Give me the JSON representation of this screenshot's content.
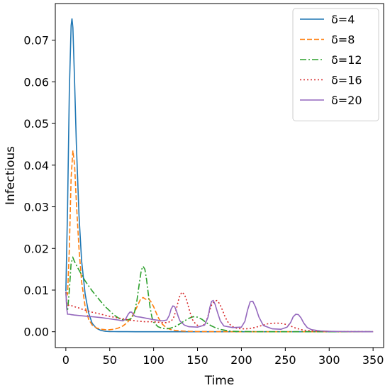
{
  "chart_data": {
    "type": "line",
    "xlabel": "Time",
    "ylabel": "Infectious",
    "xlim": [
      -12,
      362
    ],
    "ylim": [
      -0.0038,
      0.0788
    ],
    "xticks": [
      0,
      50,
      100,
      150,
      200,
      250,
      300,
      350
    ],
    "yticks": [
      0.0,
      0.01,
      0.02,
      0.03,
      0.04,
      0.05,
      0.06,
      0.07
    ],
    "ytick_labels": [
      "0.00",
      "0.01",
      "0.02",
      "0.03",
      "0.04",
      "0.05",
      "0.06",
      "0.07"
    ],
    "legend_position": "top-right",
    "grid": false,
    "series": [
      {
        "name": "δ=4",
        "color": "#1f77b4",
        "dash": "solid",
        "x": [
          0,
          2,
          4,
          6,
          7,
          8,
          10,
          12,
          15,
          18,
          22,
          26,
          30,
          35,
          40,
          45,
          50,
          55,
          60,
          70,
          80,
          100,
          150,
          200,
          250,
          300,
          350
        ],
        "y": [
          0.0098,
          0.03,
          0.058,
          0.0735,
          0.0752,
          0.073,
          0.06,
          0.045,
          0.028,
          0.017,
          0.009,
          0.0045,
          0.002,
          0.0008,
          0.0003,
          0.0001,
          5e-05,
          3e-05,
          2e-05,
          1e-05,
          0.0,
          0.0,
          0.0,
          0.0,
          0.0,
          0.0,
          0.0
        ]
      },
      {
        "name": "δ=8",
        "color": "#ff7f0e",
        "dash": "dashed",
        "x": [
          0,
          2,
          4,
          6,
          8,
          10,
          12,
          15,
          18,
          22,
          26,
          30,
          35,
          40,
          45,
          50,
          55,
          60,
          65,
          70,
          75,
          80,
          85,
          88,
          91,
          94,
          97,
          100,
          105,
          110,
          115,
          120,
          125,
          130,
          140,
          150,
          200,
          250,
          300,
          350
        ],
        "y": [
          0.0096,
          0.009,
          0.02,
          0.037,
          0.0435,
          0.04,
          0.031,
          0.02,
          0.012,
          0.006,
          0.003,
          0.0016,
          0.0009,
          0.0006,
          0.0005,
          0.0005,
          0.0006,
          0.0009,
          0.0014,
          0.0022,
          0.0035,
          0.0055,
          0.0078,
          0.0082,
          0.0078,
          0.008,
          0.0072,
          0.006,
          0.0035,
          0.0018,
          0.0009,
          0.0005,
          0.0003,
          0.0002,
          0.0001,
          5e-05,
          0.0,
          0.0,
          0.0,
          0.0
        ]
      },
      {
        "name": "δ=12",
        "color": "#2ca02c",
        "dash": "dashdot",
        "x": [
          0,
          1,
          2,
          4,
          6,
          8,
          10,
          12,
          15,
          18,
          22,
          26,
          30,
          35,
          40,
          45,
          50,
          55,
          60,
          65,
          70,
          75,
          78,
          81,
          84,
          86,
          88,
          90,
          92,
          94,
          96,
          98,
          100,
          105,
          110,
          115,
          120,
          125,
          130,
          135,
          140,
          145,
          150,
          155,
          160,
          165,
          170,
          175,
          180,
          185,
          190,
          200,
          220,
          250,
          300,
          350
        ],
        "y": [
          0.0096,
          0.006,
          0.005,
          0.01,
          0.0165,
          0.0178,
          0.0168,
          0.016,
          0.0148,
          0.0137,
          0.0122,
          0.011,
          0.0098,
          0.0085,
          0.0072,
          0.006,
          0.005,
          0.004,
          0.0033,
          0.0029,
          0.0028,
          0.0032,
          0.0045,
          0.0075,
          0.012,
          0.0148,
          0.0157,
          0.015,
          0.0125,
          0.009,
          0.0058,
          0.0035,
          0.0023,
          0.0012,
          0.0008,
          0.0007,
          0.0009,
          0.0013,
          0.0019,
          0.0026,
          0.0032,
          0.0036,
          0.0035,
          0.003,
          0.0022,
          0.0015,
          0.001,
          0.0006,
          0.0004,
          0.0002,
          0.0001,
          5e-05,
          0.0,
          0.0,
          0.0,
          0.0
        ]
      },
      {
        "name": "δ=16",
        "color": "#d62728",
        "dash": "dotted",
        "x": [
          0,
          1,
          2,
          4,
          6,
          10,
          15,
          20,
          30,
          40,
          50,
          60,
          70,
          80,
          90,
          100,
          105,
          110,
          115,
          120,
          123,
          126,
          129,
          132,
          135,
          138,
          141,
          144,
          148,
          152,
          156,
          160,
          163,
          166,
          169,
          172,
          175,
          178,
          181,
          184,
          188,
          192,
          196,
          200,
          205,
          210,
          215,
          220,
          225,
          230,
          235,
          240,
          245,
          250,
          255,
          260,
          265,
          270,
          280,
          300,
          350
        ],
        "y": [
          0.0096,
          0.007,
          0.0063,
          0.0064,
          0.0063,
          0.006,
          0.0057,
          0.0053,
          0.0047,
          0.0042,
          0.0037,
          0.0033,
          0.0029,
          0.0026,
          0.0024,
          0.0024,
          0.0023,
          0.0022,
          0.0022,
          0.0025,
          0.0035,
          0.0055,
          0.0082,
          0.0095,
          0.009,
          0.0073,
          0.005,
          0.003,
          0.0018,
          0.0013,
          0.0014,
          0.0025,
          0.0045,
          0.0064,
          0.0073,
          0.0075,
          0.0068,
          0.0054,
          0.0038,
          0.0025,
          0.0015,
          0.001,
          0.0008,
          0.0007,
          0.0007,
          0.0008,
          0.001,
          0.0013,
          0.0016,
          0.0019,
          0.002,
          0.0021,
          0.002,
          0.0018,
          0.0015,
          0.001,
          0.0007,
          0.0004,
          0.0002,
          8e-05,
          0.0
        ]
      },
      {
        "name": "δ=20",
        "color": "#9467bd",
        "dash": "solid",
        "x": [
          0,
          1,
          2,
          4,
          6,
          10,
          20,
          30,
          40,
          50,
          60,
          65,
          68,
          71,
          73,
          75,
          77,
          79,
          81,
          85,
          90,
          100,
          110,
          115,
          118,
          120,
          122,
          124,
          126,
          128,
          130,
          135,
          140,
          150,
          158,
          162,
          164,
          166,
          168,
          170,
          173,
          176,
          180,
          190,
          200,
          204,
          207,
          210,
          213,
          216,
          220,
          225,
          235,
          245,
          252,
          256,
          259,
          262,
          265,
          268,
          271,
          275,
          280,
          290,
          300,
          320,
          350
        ],
        "y": [
          0.0096,
          0.0055,
          0.0042,
          0.0042,
          0.0041,
          0.004,
          0.0038,
          0.0036,
          0.0034,
          0.0031,
          0.0028,
          0.0026,
          0.003,
          0.0042,
          0.0047,
          0.0047,
          0.0041,
          0.0037,
          0.0036,
          0.0035,
          0.0033,
          0.0029,
          0.0026,
          0.0028,
          0.004,
          0.0055,
          0.0062,
          0.006,
          0.005,
          0.0037,
          0.0026,
          0.0016,
          0.0012,
          0.0011,
          0.0016,
          0.0035,
          0.0058,
          0.0073,
          0.0075,
          0.0066,
          0.0045,
          0.0026,
          0.0014,
          0.001,
          0.0011,
          0.0025,
          0.0052,
          0.0072,
          0.0073,
          0.006,
          0.0035,
          0.0015,
          0.0007,
          0.0006,
          0.0011,
          0.0022,
          0.0036,
          0.0042,
          0.0041,
          0.0033,
          0.0021,
          0.001,
          0.0005,
          0.0002,
          0.0001,
          3e-05,
          0.0
        ]
      }
    ]
  }
}
